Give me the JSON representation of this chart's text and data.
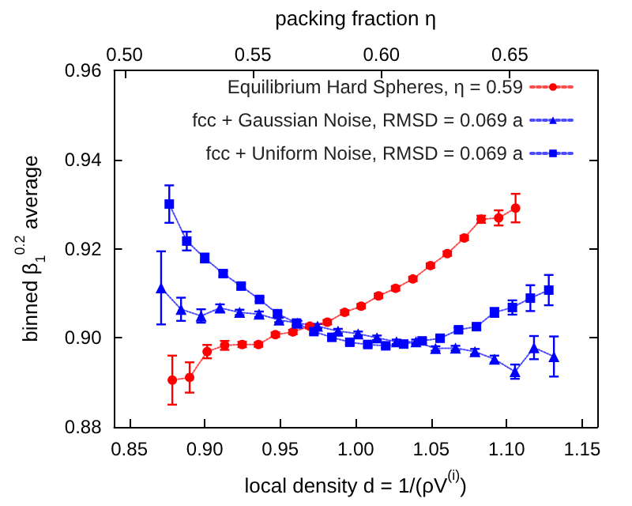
{
  "chart_data": {
    "type": "line",
    "xlabel": "local density d = 1/(ρV$^{(i)}$)",
    "ylabel": "binned β$_{1}$$^{0.2}$ average",
    "x2label": "packing fraction η",
    "xlim": [
      0.84,
      1.16
    ],
    "xticks": [
      0.85,
      {
        "value": 0.9,
        "label": "0.90"
      },
      0.95,
      {
        "value": 1,
        "label": "1.00"
      },
      1.05,
      {
        "value": 1.1,
        "label": "1.10"
      },
      1.15
    ],
    "x2lim": [
      0.496,
      0.684
    ],
    "x2ticks": [
      {
        "value": 0.5,
        "label": "0.50"
      },
      0.55,
      {
        "value": 0.6,
        "label": "0.60"
      },
      0.65
    ],
    "ylim": [
      0.88,
      0.96
    ],
    "yticks": [
      0.88,
      {
        "value": 0.9,
        "label": "0.90"
      },
      0.92,
      0.94,
      0.96
    ],
    "grid": false,
    "legend": "top right",
    "line_style": "dotted",
    "series": [
      {
        "name": "Equilibrium Hard Spheres, η = 0.59",
        "color": "#ff0000",
        "marker": "circle",
        "x": [
          0.8785,
          0.89,
          0.9016,
          0.9132,
          0.9248,
          0.9356,
          0.9468,
          0.9584,
          0.9696,
          0.9812,
          0.9927,
          1.0036,
          1.0151,
          1.0264,
          1.0379,
          1.0495,
          1.0607,
          1.0719,
          1.0831,
          1.0947,
          1.1059
        ],
        "values": [
          0.8905,
          0.8911,
          0.8969,
          0.8983,
          0.8985,
          0.8985,
          0.9007,
          0.9013,
          0.9026,
          0.9035,
          0.9057,
          0.9071,
          0.9094,
          0.9111,
          0.9132,
          0.9162,
          0.9189,
          0.9224,
          0.9266,
          0.9269,
          0.9291
        ],
        "errors": [
          0.0055,
          0.0034,
          0.0015,
          0.001,
          0.0006,
          0.0005,
          0.0005,
          0.0005,
          0.0005,
          0.0005,
          0.0005,
          0.0005,
          0.0005,
          0.0005,
          0.0005,
          0.0005,
          0.0005,
          0.0005,
          0.0008,
          0.0017,
          0.0032
        ]
      },
      {
        "name": "fcc + Gaussian Noise, RMSD = 0.069 a",
        "color": "#0000ff",
        "marker": "triangle",
        "x": [
          0.8711,
          0.8843,
          0.8976,
          0.9101,
          0.9231,
          0.936,
          0.9492,
          0.9615,
          0.9747,
          0.9883,
          1.0016,
          1.0141,
          1.027,
          1.0399,
          1.0529,
          1.0661,
          1.079,
          1.0919,
          1.1055,
          1.1181,
          1.1313
        ],
        "values": [
          0.9112,
          0.9064,
          0.9049,
          0.9067,
          0.9057,
          0.9053,
          0.904,
          0.9033,
          0.9026,
          0.9015,
          0.9009,
          0.9,
          0.8991,
          0.8991,
          0.8976,
          0.8977,
          0.8969,
          0.8952,
          0.8924,
          0.8978,
          0.8958
        ],
        "errors": [
          0.0082,
          0.0026,
          0.0015,
          0.0008,
          0.0006,
          0.0006,
          0.0005,
          0.0005,
          0.0005,
          0.0005,
          0.0005,
          0.0005,
          0.0005,
          0.0005,
          0.0005,
          0.0005,
          0.0006,
          0.0008,
          0.0016,
          0.0026,
          0.0045
        ]
      },
      {
        "name": "fcc + Uniform Noise, RMSD = 0.069 a",
        "color": "#0000ff",
        "marker": "square",
        "x": [
          0.8765,
          0.8881,
          0.9,
          0.9122,
          0.9241,
          0.9363,
          0.9482,
          0.9608,
          0.9723,
          0.9842,
          0.9961,
          1.008,
          1.0199,
          1.0318,
          1.044,
          1.0559,
          1.0681,
          1.08,
          1.0919,
          1.1038,
          1.1157,
          1.1279
        ],
        "values": [
          0.93,
          0.9217,
          0.9179,
          0.9144,
          0.9116,
          0.9086,
          0.9054,
          0.9033,
          0.9014,
          0.9001,
          0.899,
          0.8985,
          0.8982,
          0.8986,
          0.8993,
          0.8999,
          0.9018,
          0.9025,
          0.9057,
          0.9068,
          0.9089,
          0.9107
        ],
        "errors": [
          0.0042,
          0.0021,
          0.001,
          0.0006,
          0.0005,
          0.0005,
          0.0005,
          0.0005,
          0.0005,
          0.0005,
          0.0005,
          0.0005,
          0.0005,
          0.0005,
          0.0005,
          0.0005,
          0.0005,
          0.0006,
          0.001,
          0.0016,
          0.0029,
          0.0034
        ]
      }
    ]
  }
}
